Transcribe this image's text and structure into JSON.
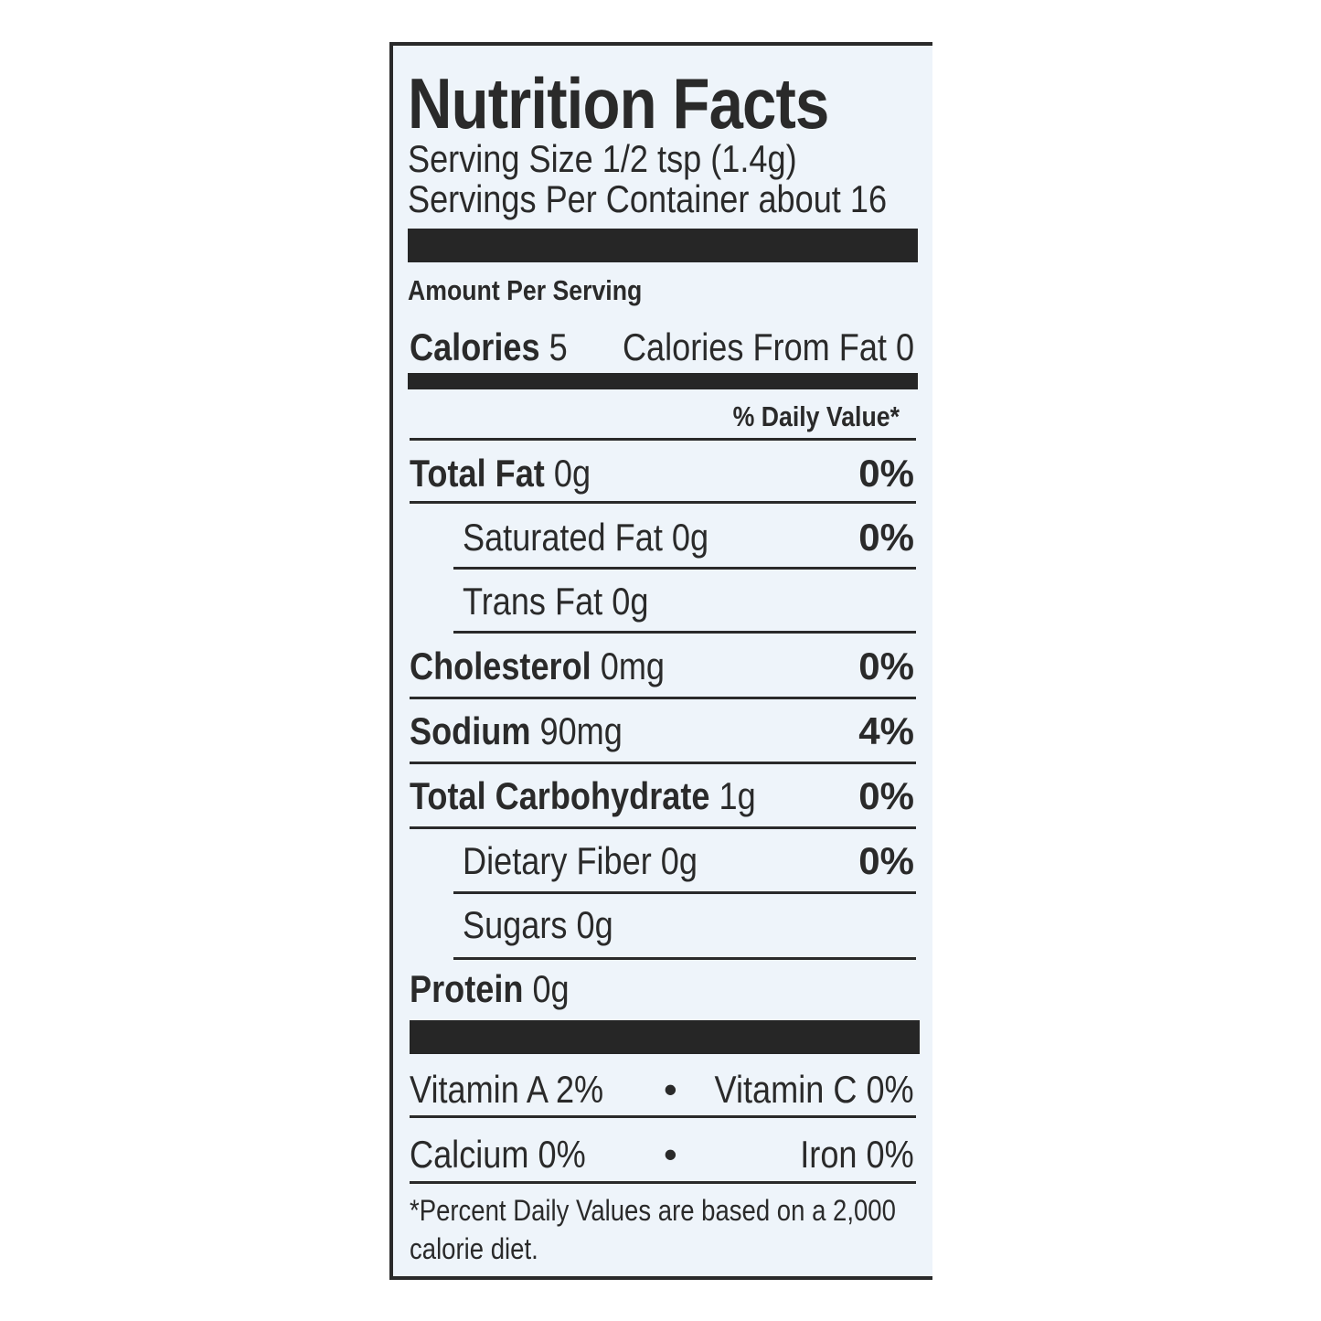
{
  "title": "Nutrition Facts",
  "serving_size": "Serving Size 1/2 tsp (1.4g)",
  "servings_per_container": "Servings Per Container about 16",
  "amount_per_serving": "Amount Per Serving",
  "calories": {
    "label": "Calories",
    "value": "5",
    "from_fat": "Calories From Fat 0"
  },
  "daily_value_header": "% Daily Value*",
  "nutrients": [
    {
      "label": "Total Fat",
      "amount": "0g",
      "dv": "0%"
    },
    {
      "label": "Saturated Fat",
      "amount": "0g",
      "dv": "0%"
    },
    {
      "label": "Trans Fat",
      "amount": "0g",
      "dv": ""
    },
    {
      "label": "Cholesterol",
      "amount": "0mg",
      "dv": "0%"
    },
    {
      "label": "Sodium",
      "amount": "90mg",
      "dv": "4%"
    },
    {
      "label": "Total Carbohydrate",
      "amount": "1g",
      "dv": "0%"
    },
    {
      "label": "Dietary Fiber",
      "amount": "0g",
      "dv": "0%"
    },
    {
      "label": "Sugars",
      "amount": "0g",
      "dv": ""
    },
    {
      "label": "Protein",
      "amount": "0g",
      "dv": ""
    }
  ],
  "vitamins": {
    "vitamin_a": "Vitamin A 2%",
    "vitamin_c": "Vitamin C 0%",
    "calcium": "Calcium 0%",
    "iron": "Iron 0%"
  },
  "footnote": [
    "*Percent Daily Values are based on a 2,000",
    "calorie diet."
  ]
}
